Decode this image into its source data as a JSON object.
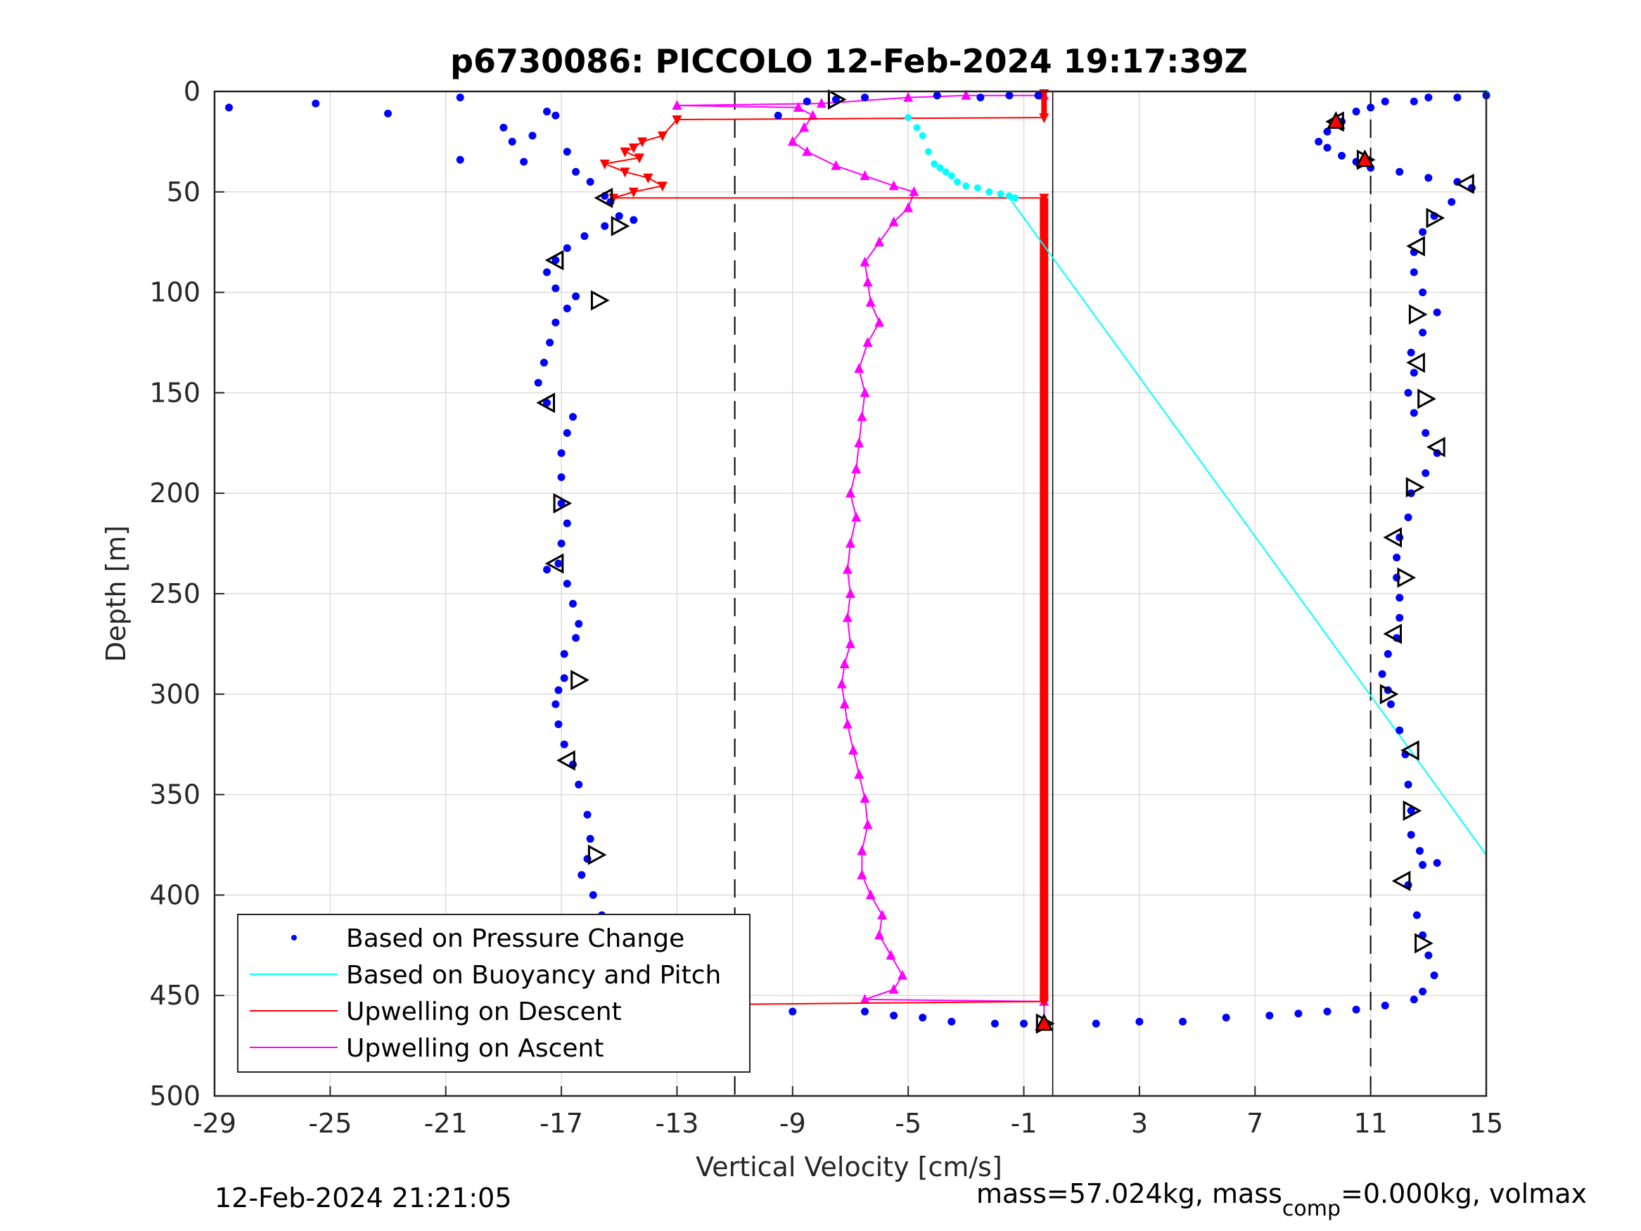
{
  "chart_data": {
    "type": "scatter",
    "title": "p6730086: PICCOLO 12-Feb-2024 19:17:39Z",
    "xlabel": "Vertical Velocity [cm/s]",
    "ylabel": "Depth [m]",
    "xlim": [
      -29,
      15
    ],
    "ylim": [
      0,
      500
    ],
    "y_reversed": true,
    "grid": true,
    "xticks": [
      -29,
      -25,
      -21,
      -17,
      -13,
      -9,
      -5,
      -1,
      3,
      7,
      11,
      15
    ],
    "yticks": [
      0,
      50,
      100,
      150,
      200,
      250,
      300,
      350,
      400,
      450,
      500
    ],
    "reference_lines": {
      "dashed_x": [
        -11,
        11
      ],
      "solid_x": [
        0
      ]
    },
    "legend_position": "bottom-left",
    "colors": {
      "pressure": "#0000ff",
      "buoyancy": "#00ffff",
      "descent": "#ff0000",
      "ascent": "#ff00ff"
    },
    "series": [
      {
        "name": "Based on Pressure Change",
        "style": "dots",
        "descent_xy": [
          [
            -28.5,
            8
          ],
          [
            -25.5,
            6
          ],
          [
            -23,
            11
          ],
          [
            -20.5,
            3
          ],
          [
            -20.5,
            34
          ],
          [
            -19,
            18
          ],
          [
            -18.7,
            25
          ],
          [
            -18.3,
            35
          ],
          [
            -18,
            22
          ],
          [
            -17.5,
            10
          ],
          [
            -17.2,
            12
          ],
          [
            -16.8,
            30
          ],
          [
            -16.5,
            40
          ],
          [
            -16,
            45
          ],
          [
            -15.5,
            52
          ],
          [
            -15.3,
            55
          ],
          [
            -15,
            62
          ],
          [
            -14.5,
            64
          ],
          [
            -15.5,
            67
          ],
          [
            -16.2,
            72
          ],
          [
            -16.8,
            78
          ],
          [
            -17.2,
            84
          ],
          [
            -17.5,
            90
          ],
          [
            -17.2,
            98
          ],
          [
            -16.5,
            102
          ],
          [
            -16.8,
            108
          ],
          [
            -17.2,
            115
          ],
          [
            -17.4,
            125
          ],
          [
            -17.6,
            135
          ],
          [
            -17.8,
            145
          ],
          [
            -17.5,
            155
          ],
          [
            -16.6,
            162
          ],
          [
            -16.8,
            170
          ],
          [
            -17.0,
            180
          ],
          [
            -17.0,
            192
          ],
          [
            -17.0,
            205
          ],
          [
            -16.8,
            215
          ],
          [
            -17.0,
            225
          ],
          [
            -17.1,
            235
          ],
          [
            -17.5,
            238
          ],
          [
            -16.8,
            245
          ],
          [
            -16.6,
            255
          ],
          [
            -16.4,
            265
          ],
          [
            -16.5,
            272
          ],
          [
            -16.9,
            280
          ],
          [
            -16.9,
            292
          ],
          [
            -17.1,
            298
          ],
          [
            -17.2,
            305
          ],
          [
            -17.1,
            315
          ],
          [
            -16.9,
            325
          ],
          [
            -16.6,
            335
          ],
          [
            -16.4,
            345
          ],
          [
            -16.1,
            360
          ],
          [
            -16.0,
            372
          ],
          [
            -16.1,
            382
          ],
          [
            -16.3,
            390
          ],
          [
            -15.9,
            400
          ],
          [
            -15.6,
            410
          ],
          [
            -15.6,
            420
          ],
          [
            -15.9,
            432
          ],
          [
            -16.0,
            442
          ],
          [
            -16.0,
            450
          ],
          [
            -15.7,
            455
          ],
          [
            -14,
            457
          ]
        ],
        "ascent_xy": [
          [
            -9.5,
            12
          ],
          [
            -8.5,
            5
          ],
          [
            -7.5,
            4
          ],
          [
            -6.5,
            3
          ],
          [
            -4,
            2
          ],
          [
            -2.5,
            3
          ],
          [
            -1.5,
            2
          ],
          [
            -0.5,
            2
          ],
          [
            -9,
            458
          ],
          [
            -6.5,
            458
          ],
          [
            -5.5,
            460
          ],
          [
            -4.5,
            461
          ],
          [
            -3.5,
            463
          ],
          [
            -2,
            464
          ],
          [
            -1,
            464
          ],
          [
            1.5,
            464
          ],
          [
            3,
            463
          ],
          [
            4.5,
            463
          ],
          [
            6,
            461
          ],
          [
            7.5,
            460
          ],
          [
            8.5,
            459
          ],
          [
            9.5,
            458
          ],
          [
            10.5,
            457
          ],
          [
            11.5,
            455
          ],
          [
            12.5,
            452
          ],
          [
            12.8,
            448
          ],
          [
            13.2,
            440
          ],
          [
            13.0,
            430
          ],
          [
            12.8,
            420
          ],
          [
            12.6,
            410
          ],
          [
            12.3,
            395
          ],
          [
            12.8,
            385
          ],
          [
            13.3,
            384
          ],
          [
            12.7,
            378
          ],
          [
            12.4,
            370
          ],
          [
            12.4,
            358
          ],
          [
            12.3,
            345
          ],
          [
            12.2,
            330
          ],
          [
            12.0,
            318
          ],
          [
            11.7,
            305
          ],
          [
            11.6,
            298
          ],
          [
            11.4,
            290
          ],
          [
            11.6,
            280
          ],
          [
            11.9,
            272
          ],
          [
            12.0,
            262
          ],
          [
            12.0,
            252
          ],
          [
            11.9,
            242
          ],
          [
            11.9,
            232
          ],
          [
            12.0,
            222
          ],
          [
            12.3,
            212
          ],
          [
            12.4,
            200
          ],
          [
            12.9,
            190
          ],
          [
            13.3,
            180
          ],
          [
            12.9,
            170
          ],
          [
            12.5,
            160
          ],
          [
            12.3,
            150
          ],
          [
            12.5,
            140
          ],
          [
            12.4,
            130
          ],
          [
            12.8,
            120
          ],
          [
            13.3,
            110
          ],
          [
            12.8,
            100
          ],
          [
            12.5,
            90
          ],
          [
            12.5,
            80
          ],
          [
            12.8,
            70
          ],
          [
            13.2,
            62
          ],
          [
            13.8,
            55
          ],
          [
            14.5,
            48
          ],
          [
            14.0,
            45
          ],
          [
            13.0,
            43
          ],
          [
            12.0,
            40
          ],
          [
            11.0,
            38
          ],
          [
            10.5,
            35
          ],
          [
            10.0,
            32
          ],
          [
            9.5,
            28
          ],
          [
            9.2,
            25
          ],
          [
            9.5,
            20
          ],
          [
            10.0,
            15
          ],
          [
            10.5,
            10
          ],
          [
            11.0,
            8
          ],
          [
            11.5,
            5
          ],
          [
            12.5,
            5
          ],
          [
            13.0,
            3
          ],
          [
            14.0,
            3
          ],
          [
            15.0,
            2
          ]
        ]
      },
      {
        "name": "Based on Buoyancy and Pitch",
        "style": "line",
        "near_surface_dots_xy": [
          [
            -5,
            13
          ],
          [
            -4.7,
            18
          ],
          [
            -4.5,
            22
          ],
          [
            -4.3,
            30
          ],
          [
            -4.1,
            36
          ],
          [
            -3.9,
            38
          ],
          [
            -3.7,
            40
          ],
          [
            -3.5,
            42
          ],
          [
            -3.3,
            45
          ],
          [
            -3.0,
            47
          ],
          [
            -2.6,
            48
          ],
          [
            -2.2,
            50
          ],
          [
            -1.8,
            51
          ],
          [
            -1.5,
            52
          ],
          [
            -1.3,
            53
          ],
          [
            15,
            1
          ]
        ],
        "line_xy": [
          [
            -1.5,
            53
          ],
          [
            15,
            380
          ]
        ]
      },
      {
        "name": "Upwelling on Descent",
        "style": "line+markers",
        "xy": [
          [
            -0.3,
            1
          ],
          [
            -0.3,
            13
          ],
          [
            -13,
            14
          ],
          [
            -13.5,
            22
          ],
          [
            -14.2,
            25
          ],
          [
            -14.5,
            28
          ],
          [
            -14.8,
            30
          ],
          [
            -14.3,
            33
          ],
          [
            -15.5,
            36
          ],
          [
            -14.8,
            40
          ],
          [
            -14,
            43
          ],
          [
            -13.5,
            47
          ],
          [
            -14.5,
            50
          ],
          [
            -15.2,
            53
          ],
          [
            -0.3,
            53
          ],
          [
            -0.3,
            453
          ],
          [
            -15.8,
            455
          ]
        ]
      },
      {
        "name": "Upwelling on Ascent",
        "style": "line+markers",
        "xy": [
          [
            -0.3,
            463
          ],
          [
            -0.3,
            453
          ],
          [
            -6.5,
            452
          ],
          [
            -5.5,
            447
          ],
          [
            -5.2,
            440
          ],
          [
            -5.6,
            430
          ],
          [
            -6.0,
            420
          ],
          [
            -5.9,
            410
          ],
          [
            -6.3,
            400
          ],
          [
            -6.6,
            390
          ],
          [
            -6.6,
            378
          ],
          [
            -6.4,
            365
          ],
          [
            -6.5,
            352
          ],
          [
            -6.7,
            340
          ],
          [
            -6.9,
            328
          ],
          [
            -7.1,
            315
          ],
          [
            -7.2,
            305
          ],
          [
            -7.3,
            295
          ],
          [
            -7.2,
            285
          ],
          [
            -7.0,
            275
          ],
          [
            -7.1,
            262
          ],
          [
            -7.0,
            250
          ],
          [
            -7.1,
            238
          ],
          [
            -7.0,
            225
          ],
          [
            -6.8,
            212
          ],
          [
            -7.0,
            200
          ],
          [
            -6.8,
            188
          ],
          [
            -6.7,
            175
          ],
          [
            -6.6,
            162
          ],
          [
            -6.5,
            150
          ],
          [
            -6.7,
            138
          ],
          [
            -6.4,
            125
          ],
          [
            -6.0,
            115
          ],
          [
            -6.3,
            105
          ],
          [
            -6.4,
            95
          ],
          [
            -6.5,
            85
          ],
          [
            -6.0,
            75
          ],
          [
            -5.5,
            65
          ],
          [
            -5.0,
            58
          ],
          [
            -4.8,
            50
          ],
          [
            -5.5,
            47
          ],
          [
            -6.5,
            42
          ],
          [
            -7.5,
            37
          ],
          [
            -8.5,
            30
          ],
          [
            -9.0,
            25
          ],
          [
            -8.6,
            18
          ],
          [
            -8.3,
            12
          ],
          [
            -8.8,
            8
          ],
          [
            -13,
            7
          ],
          [
            -8,
            6
          ],
          [
            -5,
            3
          ],
          [
            -3,
            2
          ],
          [
            -0.3,
            2
          ]
        ]
      },
      {
        "name": "",
        "style": "triangles",
        "xy": [
          [
            -7.5,
            4
          ],
          [
            -15.5,
            53
          ],
          [
            -15,
            67
          ],
          [
            -17.2,
            84
          ],
          [
            -15.7,
            104
          ],
          [
            -17.5,
            155
          ],
          [
            -17.0,
            205
          ],
          [
            -17.2,
            235
          ],
          [
            -16.4,
            293
          ],
          [
            -16.8,
            333
          ],
          [
            -15.8,
            380
          ],
          [
            -15.8,
            455
          ],
          [
            -0.3,
            464
          ],
          [
            9.8,
            15
          ],
          [
            10.8,
            34
          ],
          [
            14.3,
            46
          ],
          [
            13.2,
            63
          ],
          [
            12.6,
            77
          ],
          [
            12.6,
            111
          ],
          [
            12.6,
            135
          ],
          [
            12.9,
            153
          ],
          [
            13.3,
            177
          ],
          [
            12.5,
            197
          ],
          [
            11.8,
            222
          ],
          [
            12.2,
            242
          ],
          [
            11.8,
            270
          ],
          [
            11.6,
            300
          ],
          [
            12.4,
            328
          ],
          [
            12.4,
            358
          ],
          [
            12.1,
            393
          ],
          [
            12.8,
            424
          ]
        ]
      }
    ]
  },
  "footer": {
    "timestamp": "12-Feb-2024 21:21:05",
    "mass_prefix": "mass=57.024kg, mass",
    "mass_sub": "comp",
    "mass_suffix": "=0.000kg, volmax"
  }
}
